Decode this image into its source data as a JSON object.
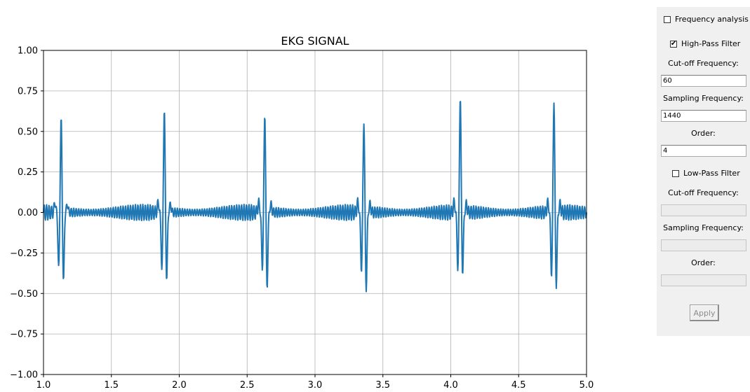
{
  "chart_data": {
    "type": "line",
    "title": "EKG SIGNAL",
    "xlabel": "",
    "ylabel": "",
    "xlim": [
      1.0,
      5.0
    ],
    "ylim": [
      -1.0,
      1.0
    ],
    "grid": true,
    "x_ticks": [
      "1.0",
      "1.5",
      "2.0",
      "2.5",
      "3.0",
      "3.5",
      "4.0",
      "4.5",
      "5.0"
    ],
    "y_ticks": [
      "1.00",
      "0.75",
      "0.50",
      "0.25",
      "0.00",
      "−0.25",
      "−0.50",
      "−0.75",
      "−1.00"
    ],
    "series": [
      {
        "color": "#1f77b4",
        "baseline_noise_amplitude": 0.05,
        "beats": [
          {
            "t": 1.13,
            "q_min": -0.34,
            "r_peak": 0.59,
            "s_min": -0.43
          },
          {
            "t": 1.89,
            "q_min": -0.35,
            "r_peak": 0.64,
            "s_min": -0.42
          },
          {
            "t": 2.63,
            "q_min": -0.35,
            "r_peak": 0.61,
            "s_min": -0.47
          },
          {
            "t": 3.36,
            "q_min": -0.36,
            "r_peak": 0.56,
            "s_min": -0.48
          },
          {
            "t": 4.07,
            "q_min": -0.35,
            "r_peak": 0.72,
            "s_min": -0.38
          },
          {
            "t": 4.76,
            "q_min": -0.39,
            "r_peak": 0.69,
            "s_min": -0.46
          }
        ]
      }
    ]
  },
  "panel": {
    "frequency_analysis": {
      "label": "Frequency analysis",
      "checked": false
    },
    "high_pass": {
      "label": "High-Pass Filter",
      "checked": true,
      "cutoff_label": "Cut-off Frequency:",
      "cutoff_value": "60",
      "sampling_label": "Sampling Frequency:",
      "sampling_value": "1440",
      "order_label": "Order:",
      "order_value": "4"
    },
    "low_pass": {
      "label": "Low-Pass Filter",
      "checked": false,
      "cutoff_label": "Cut-off Frequency:",
      "cutoff_value": "",
      "sampling_label": "Sampling Frequency:",
      "sampling_value": "",
      "order_label": "Order:",
      "order_value": ""
    },
    "apply_label": "Apply"
  }
}
